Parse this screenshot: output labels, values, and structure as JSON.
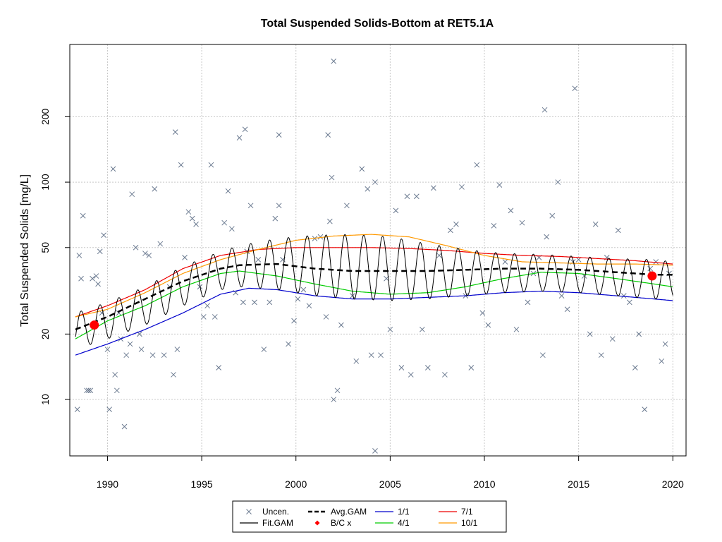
{
  "chart_data": {
    "type": "scatter",
    "title": "Total Suspended Solids-Bottom at RET5.1A",
    "xlabel": "",
    "ylabel": "Total Suspended Solids [mg/L]",
    "yscale": "log",
    "xlim": [
      1988.0,
      2020.7
    ],
    "ylim": [
      5.5,
      430
    ],
    "x_ticks": [
      1990,
      1995,
      2000,
      2005,
      2010,
      2015,
      2020
    ],
    "x_tick_labels": [
      "1990",
      "1995",
      "2000",
      "2005",
      "2010",
      "2015",
      "2020"
    ],
    "y_ticks": [
      10,
      20,
      50,
      100,
      200
    ],
    "y_tick_labels": [
      "10",
      "20",
      "50",
      "100",
      "200"
    ],
    "grid": true,
    "legend_position": "bottom",
    "legend": [
      {
        "label": "Uncen.",
        "symbol": "x",
        "color": "#6b7a90"
      },
      {
        "label": "Avg.GAM",
        "symbol": "dashed-line",
        "color": "#000000"
      },
      {
        "label": "1/1",
        "symbol": "line",
        "color": "#0000cc"
      },
      {
        "label": "7/1",
        "symbol": "line",
        "color": "#ee0000"
      },
      {
        "label": "Fit.GAM",
        "symbol": "line",
        "color": "#000000"
      },
      {
        "label": "B/C x",
        "symbol": "diamond",
        "color": "#ff0000"
      },
      {
        "label": "4/1",
        "symbol": "line",
        "color": "#00cc00"
      },
      {
        "label": "10/1",
        "symbol": "line",
        "color": "#ff9900"
      }
    ],
    "series": [
      {
        "name": "1/1",
        "color": "#0000cc",
        "x": [
          1988.3,
          1990,
          1992,
          1994,
          1996,
          1997.5,
          1999,
          2001,
          2003,
          2005,
          2007,
          2009,
          2011,
          2013,
          2015,
          2017,
          2019,
          2020
        ],
        "y": [
          16,
          18,
          21,
          25,
          30.5,
          32.5,
          32,
          30,
          29,
          29,
          29.5,
          30,
          31,
          31.5,
          31,
          30,
          29,
          28.5
        ]
      },
      {
        "name": "4/1",
        "color": "#00cc00",
        "x": [
          1988.3,
          1990,
          1992,
          1994,
          1996,
          1997,
          1999,
          2001,
          2003,
          2005,
          2007,
          2009,
          2011,
          2013,
          2015,
          2017,
          2019,
          2020
        ],
        "y": [
          19,
          23,
          27,
          33,
          38,
          39,
          37,
          34,
          31.5,
          30.5,
          31,
          33,
          36,
          38.5,
          38,
          36,
          34,
          33
        ]
      },
      {
        "name": "7/1",
        "color": "#ee0000",
        "x": [
          1988.3,
          1990,
          1992,
          1994,
          1996,
          1998,
          2000,
          2002,
          2004,
          2006,
          2008,
          2010,
          2012,
          2014,
          2016,
          2018,
          2020
        ],
        "y": [
          24,
          27,
          32,
          40,
          46,
          49,
          50,
          50,
          50,
          49.5,
          48.5,
          47,
          46,
          45.5,
          44.5,
          43.5,
          42
        ]
      },
      {
        "name": "10/1",
        "color": "#ff9900",
        "x": [
          1988.3,
          1990,
          1992,
          1994,
          1996,
          1998,
          2000,
          2002,
          2004,
          2006,
          2008,
          2010,
          2012,
          2014,
          2016,
          2018,
          2020
        ],
        "y": [
          24,
          26,
          31,
          38,
          44,
          49,
          54,
          56.5,
          57.5,
          56,
          51,
          46,
          43,
          42.5,
          42,
          42,
          41.5
        ]
      },
      {
        "name": "Avg.GAM",
        "color": "#000000",
        "dashed": true,
        "x": [
          1988.3,
          1990,
          1992,
          1994,
          1996,
          1997,
          1999,
          2001,
          2003,
          2005,
          2007,
          2009,
          2011,
          2013,
          2015,
          2017,
          2019,
          2020
        ],
        "y": [
          21,
          24,
          29,
          35,
          40,
          41.5,
          42,
          40,
          39,
          39,
          39,
          39.5,
          40,
          40,
          39.5,
          38.5,
          37.5,
          37.5
        ]
      },
      {
        "name": "Fit.GAM",
        "color": "#000000",
        "seasonal": true,
        "x": [
          1988.3,
          1990,
          1992,
          1994,
          1996,
          1997,
          1999,
          2001,
          2003,
          2005,
          2007,
          2009,
          2011,
          2013,
          2015,
          2017,
          2019,
          2020
        ],
        "y_low": [
          17,
          19,
          22,
          27,
          32,
          33,
          32,
          30,
          29,
          28.5,
          29,
          30,
          31,
          31.5,
          31,
          30,
          29,
          29
        ],
        "y_high": [
          25,
          28,
          33,
          41,
          48,
          51,
          55,
          57,
          57.5,
          56,
          52,
          49,
          47,
          46.5,
          45.5,
          44.5,
          44,
          43
        ]
      }
    ],
    "bc_points": [
      {
        "x": 1989.3,
        "y": 22.0
      },
      {
        "x": 2018.9,
        "y": 37.0
      }
    ],
    "observations": {
      "x": [
        1988.4,
        1988.5,
        1988.6,
        1988.7,
        1988.9,
        1989.0,
        1989.1,
        1989.2,
        1989.4,
        1989.5,
        1989.6,
        1989.7,
        1989.8,
        1990.0,
        1990.1,
        1990.3,
        1990.4,
        1990.5,
        1990.6,
        1990.7,
        1990.9,
        1991.0,
        1991.2,
        1991.3,
        1991.5,
        1991.7,
        1991.8,
        1992.0,
        1992.2,
        1992.4,
        1992.5,
        1992.8,
        1993.0,
        1993.3,
        1993.5,
        1993.7,
        1993.9,
        1994.1,
        1994.3,
        1994.5,
        1994.7,
        1994.9,
        1995.1,
        1995.3,
        1995.5,
        1995.7,
        1995.9,
        1996.2,
        1996.4,
        1996.6,
        1996.8,
        1997.0,
        1997.2,
        1997.4,
        1997.6,
        1997.8,
        1998.0,
        1998.3,
        1998.6,
        1998.9,
        1999.1,
        1999.3,
        1999.6,
        1999.9,
        2000.1,
        2000.4,
        2000.7,
        2001.0,
        2001.3,
        2001.6,
        2001.8,
        2002.0,
        2002.2,
        2002.4,
        2002.7,
        2003.0,
        2003.2,
        2003.5,
        2003.8,
        2004.0,
        2004.2,
        2004.5,
        2004.8,
        2005.0,
        2005.3,
        2005.6,
        2005.9,
        2006.1,
        2006.4,
        2006.7,
        2007.0,
        2007.3,
        2007.6,
        2007.9,
        2008.2,
        2008.5,
        2008.8,
        2009.0,
        2009.3,
        2009.6,
        2009.9,
        2010.2,
        2010.5,
        2010.8,
        2011.1,
        2011.4,
        2011.7,
        2012.0,
        2012.3,
        2012.6,
        2012.9,
        2013.1,
        2013.3,
        2013.6,
        2013.9,
        2014.1,
        2014.4,
        2014.7,
        2015.0,
        2015.3,
        2015.6,
        2015.9,
        2016.2,
        2016.5,
        2016.8,
        2017.1,
        2017.4,
        2017.7,
        2018.0,
        2018.2,
        2018.5,
        2018.8,
        2019.1,
        2019.4,
        2019.6,
        2019.8,
        2002.0,
        2001.7,
        2004.2,
        2014.8,
        2013.2,
        2001.9,
        1993.6,
        1997.3,
        1999.1
      ],
      "y": [
        9,
        46,
        36,
        70,
        11,
        11,
        11,
        36,
        37,
        34,
        48,
        25,
        57,
        17,
        9,
        115,
        13,
        11,
        25,
        19,
        7.5,
        16,
        18,
        88,
        50,
        20,
        17,
        47,
        46,
        16,
        93,
        52,
        16,
        33,
        13,
        17,
        120,
        45,
        73,
        68,
        64,
        33,
        24,
        27,
        120,
        24,
        14,
        65,
        91,
        61,
        31,
        160,
        28,
        48,
        78,
        28,
        44,
        17,
        28,
        68,
        78,
        44,
        18,
        23,
        29,
        32,
        27,
        55,
        56,
        24,
        66,
        10,
        11,
        22,
        78,
        30,
        15,
        115,
        93,
        16,
        100,
        16,
        36,
        21,
        74,
        14,
        86,
        13,
        86,
        21,
        14,
        94,
        46,
        13,
        60,
        64,
        95,
        30,
        14,
        120,
        25,
        22,
        63,
        97,
        43,
        74,
        21,
        65,
        28,
        38,
        45,
        16,
        56,
        70,
        100,
        30,
        26,
        43,
        44,
        37,
        20,
        64,
        16,
        45,
        19,
        60,
        30,
        28,
        14,
        20,
        9,
        40,
        43,
        15,
        18,
        38,
        360,
        165,
        5.8,
        270,
        215,
        105,
        170,
        175,
        165
      ]
    }
  }
}
